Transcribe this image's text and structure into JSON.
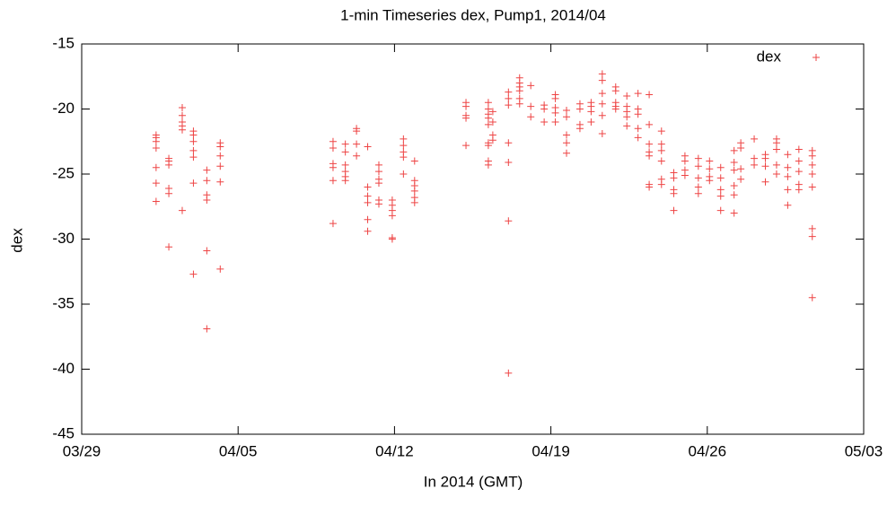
{
  "chart_data": {
    "type": "scatter",
    "title": "1-min Timeseries dex, Pump1, 2014/04",
    "x_label": "In 2014 (GMT)",
    "y_label": "dex",
    "xlim": [
      -2,
      33
    ],
    "xticks": [
      {
        "value": -2,
        "label": "03/29"
      },
      {
        "value": 5,
        "label": "04/05"
      },
      {
        "value": 12,
        "label": "04/12"
      },
      {
        "value": 19,
        "label": "04/19"
      },
      {
        "value": 26,
        "label": "04/26"
      },
      {
        "value": 33,
        "label": "05/03"
      }
    ],
    "ylim": [
      -45,
      -15
    ],
    "yticks": [
      -45,
      -40,
      -35,
      -30,
      -25,
      -20,
      -15
    ],
    "legend": "top-right",
    "x": [
      1.33,
      1.33,
      1.33,
      1.33,
      1.33,
      1.33,
      1.33,
      1.9,
      1.9,
      1.9,
      1.9,
      1.9,
      1.9,
      2.5,
      2.5,
      2.5,
      2.5,
      2.5,
      2.5,
      3.0,
      3.0,
      3.0,
      3.0,
      3.0,
      3.0,
      3.0,
      3.6,
      3.6,
      3.6,
      3.6,
      3.6,
      3.6,
      4.2,
      4.2,
      4.2,
      4.2,
      4.2,
      4.2,
      9.25,
      9.25,
      9.25,
      9.25,
      9.25,
      9.25,
      9.8,
      9.8,
      9.8,
      9.8,
      9.8,
      9.8,
      10.3,
      10.3,
      10.3,
      10.3,
      10.8,
      10.8,
      10.8,
      10.8,
      10.8,
      10.8,
      11.3,
      11.3,
      11.3,
      11.3,
      11.3,
      11.3,
      11.9,
      11.9,
      11.9,
      11.9,
      11.9,
      11.9,
      12.4,
      12.4,
      12.4,
      12.4,
      12.4,
      12.9,
      12.9,
      12.9,
      12.9,
      12.9,
      12.9,
      15.2,
      15.2,
      15.2,
      15.2,
      15.2,
      16.2,
      16.2,
      16.2,
      16.2,
      16.2,
      16.2,
      16.2,
      16.2,
      16.2,
      16.4,
      16.4,
      16.4,
      16.4,
      17.1,
      17.1,
      17.1,
      17.1,
      17.1,
      17.1,
      17.1,
      17.6,
      17.6,
      17.6,
      17.6,
      17.6,
      17.6,
      18.1,
      18.1,
      18.1,
      18.7,
      18.7,
      18.7,
      19.2,
      19.2,
      19.2,
      19.2,
      19.2,
      19.7,
      19.7,
      19.7,
      19.7,
      19.7,
      20.3,
      20.3,
      20.3,
      20.3,
      20.8,
      20.8,
      20.8,
      20.8,
      21.3,
      21.3,
      21.3,
      21.3,
      21.3,
      21.3,
      21.9,
      21.9,
      21.9,
      21.9,
      21.9,
      22.4,
      22.4,
      22.4,
      22.4,
      22.4,
      22.9,
      22.9,
      22.9,
      22.9,
      22.9,
      23.4,
      23.4,
      23.4,
      23.4,
      23.4,
      23.4,
      23.4,
      23.95,
      23.95,
      23.95,
      23.95,
      23.95,
      23.95,
      24.5,
      24.5,
      24.5,
      24.5,
      24.5,
      25.0,
      25.0,
      25.0,
      25.0,
      25.6,
      25.6,
      25.6,
      25.6,
      25.6,
      26.1,
      26.1,
      26.1,
      26.1,
      26.6,
      26.6,
      26.6,
      26.6,
      26.6,
      27.2,
      27.2,
      27.2,
      27.2,
      27.2,
      27.2,
      27.5,
      27.5,
      27.5,
      27.5,
      28.1,
      28.1,
      28.1,
      28.6,
      28.6,
      28.6,
      28.6,
      29.1,
      29.1,
      29.1,
      29.1,
      29.1,
      29.6,
      29.6,
      29.6,
      29.6,
      29.6,
      30.1,
      30.1,
      30.1,
      30.1,
      30.1,
      30.7,
      30.7,
      30.7,
      30.7,
      30.7,
      30.7,
      30.7,
      30.7
    ],
    "series": [
      {
        "name": "dex",
        "color": "#ee4444",
        "values": [
          -22.2,
          -22.5,
          -23,
          -24.5,
          -25.7,
          -27.1,
          -22,
          -23.8,
          -24,
          -24.3,
          -26.1,
          -26.5,
          -30.6,
          -19.9,
          -20.5,
          -21,
          -21.3,
          -21.6,
          -27.8,
          -21.7,
          -22,
          -22.5,
          -23.2,
          -23.7,
          -25.7,
          -32.7,
          -24.7,
          -25.5,
          -26.6,
          -27,
          -30.9,
          -36.9,
          -22.6,
          -22.9,
          -23.6,
          -24.4,
          -25.6,
          -32.3,
          -22.5,
          -23,
          -24.2,
          -24.5,
          -25.5,
          -28.8,
          -22.7,
          -23.3,
          -24.3,
          -24.8,
          -25.2,
          -25.5,
          -21.5,
          -21.7,
          -22.7,
          -23.6,
          -22.9,
          -26,
          -26.7,
          -27.2,
          -28.5,
          -29.4,
          -24.3,
          -24.8,
          -25.4,
          -25.7,
          -27,
          -27.3,
          -27,
          -27.4,
          -27.8,
          -28.2,
          -29.9,
          -30,
          -22.3,
          -22.8,
          -23.3,
          -23.7,
          -25,
          -24,
          -25.5,
          -25.9,
          -26.3,
          -26.8,
          -27.2,
          -19.5,
          -19.8,
          -20.5,
          -20.7,
          -22.8,
          -19.5,
          -20,
          -20.4,
          -20.7,
          -21.2,
          -22.6,
          -22.8,
          -24,
          -24.3,
          -20.2,
          -21,
          -22,
          -22.4,
          -18.7,
          -19.2,
          -19.7,
          -22.6,
          -24.1,
          -28.6,
          -40.3,
          -17.6,
          -18,
          -18.3,
          -18.6,
          -19.2,
          -19.6,
          -18.2,
          -19.8,
          -20.6,
          -19.7,
          -20,
          -21,
          -18.9,
          -19.2,
          -19.9,
          -20.3,
          -21,
          -20.1,
          -20.6,
          -22,
          -22.6,
          -23.4,
          -19.6,
          -20,
          -21.2,
          -21.5,
          -19.5,
          -19.8,
          -20.2,
          -21,
          -17.3,
          -17.8,
          -18.8,
          -19.6,
          -20.5,
          -21.9,
          -18.3,
          -18.6,
          -19.5,
          -19.8,
          -20,
          -19,
          -19.8,
          -20.2,
          -20.6,
          -21.3,
          -18.8,
          -20,
          -20.4,
          -21.5,
          -22.2,
          -18.9,
          -21.2,
          -22.7,
          -23.3,
          -23.6,
          -25.8,
          -26,
          -21.7,
          -22.7,
          -23.2,
          -24,
          -25.4,
          -25.8,
          -24.9,
          -25.3,
          -26.2,
          -26.5,
          -27.8,
          -23.6,
          -24,
          -24.7,
          -25.1,
          -23.8,
          -24.4,
          -25.3,
          -26,
          -26.5,
          -24,
          -24.6,
          -25.2,
          -25.5,
          -24.5,
          -25.3,
          -26.2,
          -26.7,
          -27.8,
          -23.2,
          -24.1,
          -24.7,
          -25.9,
          -26.6,
          -28,
          -22.6,
          -23,
          -24.6,
          -25.4,
          -22.3,
          -23.8,
          -24.3,
          -23.5,
          -23.8,
          -24.4,
          -25.6,
          -22.3,
          -22.6,
          -23.1,
          -24.3,
          -25,
          -23.5,
          -24.5,
          -25.2,
          -26.2,
          -27.4,
          -23.1,
          -24,
          -24.8,
          -25.8,
          -26.2,
          -23.2,
          -23.6,
          -24.3,
          -25,
          -26,
          -29.2,
          -29.8,
          -34.5
        ]
      }
    ]
  }
}
